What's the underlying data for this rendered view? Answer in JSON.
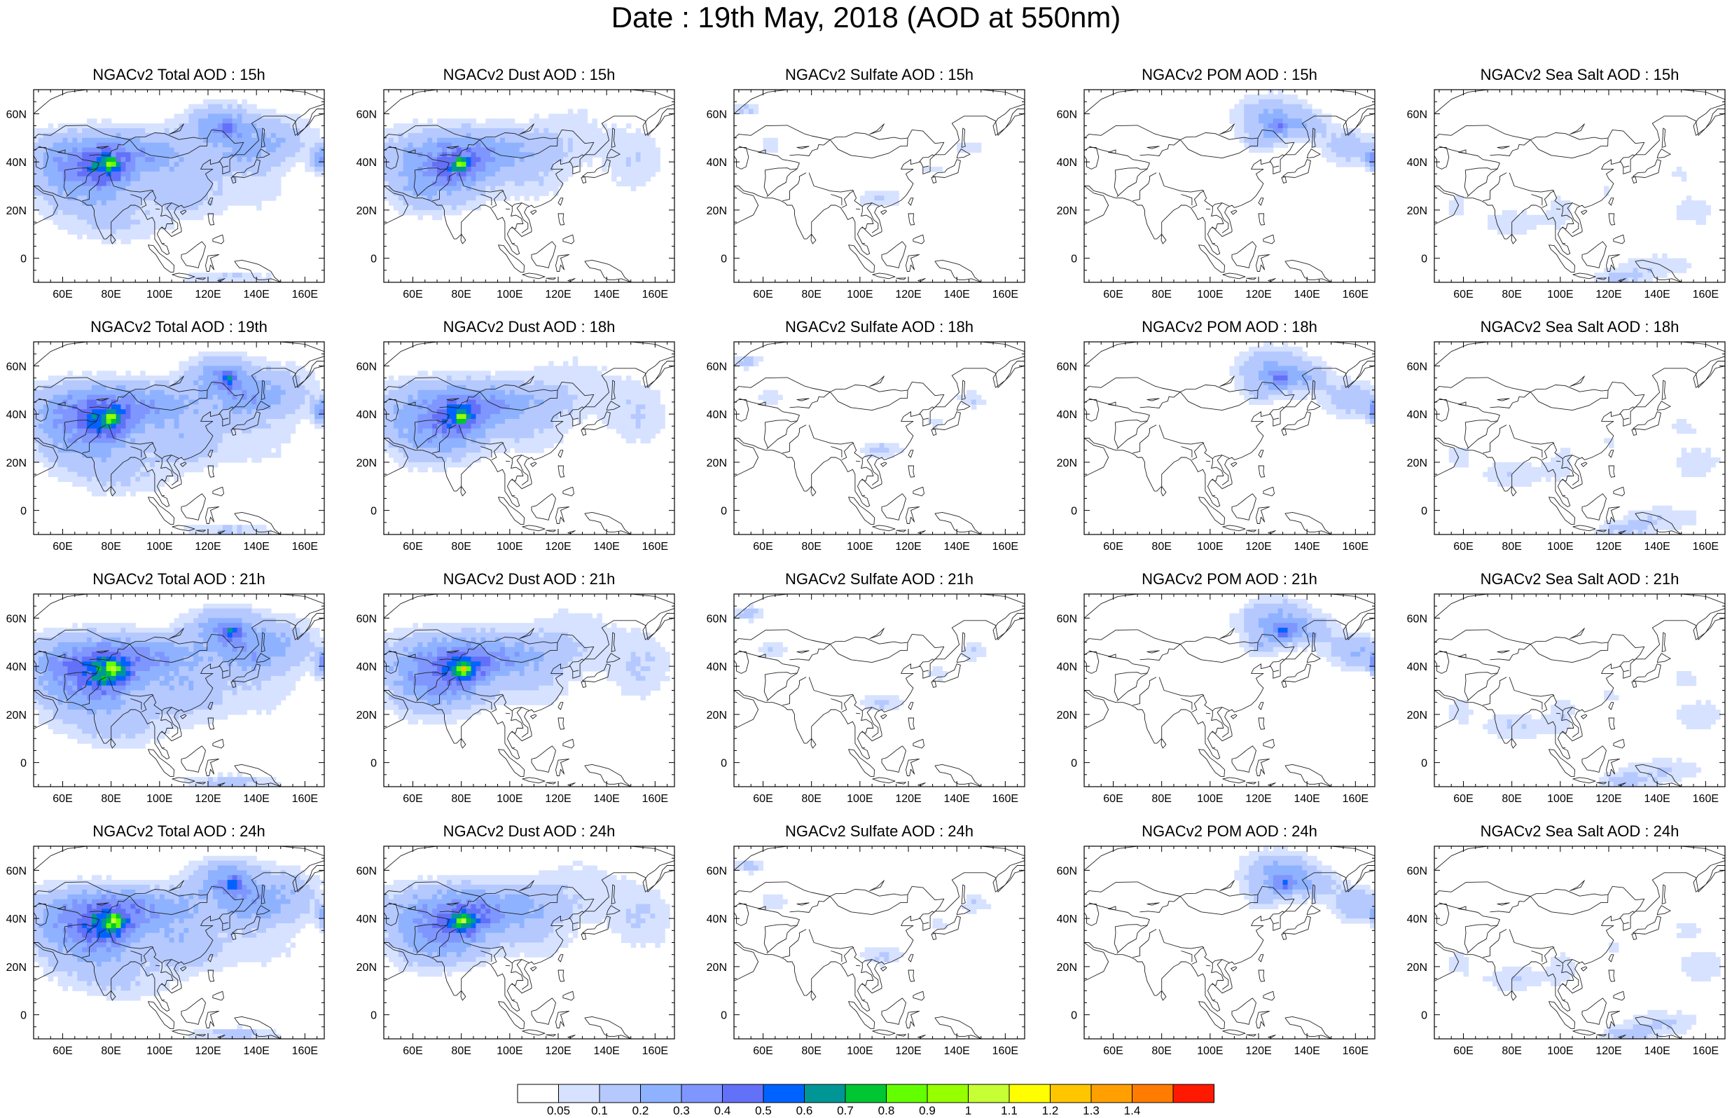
{
  "title": "Date : 19th May, 2018 (AOD at 550nm)",
  "chart_data": {
    "type": "heatmap",
    "title": "Date : 19th May, 2018 (AOD at 550nm)",
    "lon_range": [
      48,
      168
    ],
    "lat_range": [
      -10,
      70
    ],
    "lon_ticks": [
      "60E",
      "80E",
      "100E",
      "120E",
      "140E",
      "160E"
    ],
    "lon_tick_values": [
      60,
      80,
      100,
      120,
      140,
      160
    ],
    "lat_ticks": [
      "60N",
      "40N",
      "20N",
      "0"
    ],
    "lat_tick_values": [
      60,
      40,
      20,
      0
    ],
    "species": [
      "Total",
      "Dust",
      "Sulfate",
      "POM",
      "Sea Salt"
    ],
    "hours": [
      "15h",
      "18h/19h",
      "21h",
      "24h"
    ],
    "panels": [
      {
        "title": "NGACv2 Total AOD : 15h",
        "species": "Total",
        "hour": "15h"
      },
      {
        "title": "NGACv2 Dust AOD : 15h",
        "species": "Dust",
        "hour": "15h"
      },
      {
        "title": "NGACv2 Sulfate AOD : 15h",
        "species": "Sulfate",
        "hour": "15h"
      },
      {
        "title": "NGACv2 POM AOD : 15h",
        "species": "POM",
        "hour": "15h"
      },
      {
        "title": "NGACv2 Sea Salt AOD : 15h",
        "species": "Sea Salt",
        "hour": "15h"
      },
      {
        "title": "NGACv2 Total AOD : 19th",
        "species": "Total",
        "hour": "19th"
      },
      {
        "title": "NGACv2 Dust AOD : 18h",
        "species": "Dust",
        "hour": "18h"
      },
      {
        "title": "NGACv2 Sulfate AOD : 18h",
        "species": "Sulfate",
        "hour": "18h"
      },
      {
        "title": "NGACv2 POM AOD : 18h",
        "species": "POM",
        "hour": "18h"
      },
      {
        "title": "NGACv2 Sea Salt AOD : 18h",
        "species": "Sea Salt",
        "hour": "18h"
      },
      {
        "title": "NGACv2 Total AOD : 21h",
        "species": "Total",
        "hour": "21h"
      },
      {
        "title": "NGACv2 Dust AOD : 21h",
        "species": "Dust",
        "hour": "21h"
      },
      {
        "title": "NGACv2 Sulfate AOD : 21h",
        "species": "Sulfate",
        "hour": "21h"
      },
      {
        "title": "NGACv2 POM AOD : 21h",
        "species": "POM",
        "hour": "21h"
      },
      {
        "title": "NGACv2 Sea Salt AOD : 21h",
        "species": "Sea Salt",
        "hour": "21h"
      },
      {
        "title": "NGACv2 Total AOD : 24h",
        "species": "Total",
        "hour": "24h"
      },
      {
        "title": "NGACv2 Dust AOD : 24h",
        "species": "Dust",
        "hour": "24h"
      },
      {
        "title": "NGACv2 Sulfate AOD : 24h",
        "species": "Sulfate",
        "hour": "24h"
      },
      {
        "title": "NGACv2 POM AOD : 24h",
        "species": "POM",
        "hour": "24h"
      },
      {
        "title": "NGACv2 Sea Salt  AOD : 24h",
        "species": "Sea Salt",
        "hour": "24h"
      }
    ],
    "colorbar": {
      "labels": [
        "0.05",
        "0.1",
        "0.2",
        "0.3",
        "0.4",
        "0.5",
        "0.6",
        "0.7",
        "0.8",
        "0.9",
        "1",
        "1.1",
        "1.2",
        "1.3",
        "1.4"
      ],
      "colors": [
        "#ffffff",
        "#d6e2ff",
        "#b5c9ff",
        "#8eb2ff",
        "#7f96ff",
        "#6370f8",
        "#0063ff",
        "#009696",
        "#00c633",
        "#63ff00",
        "#96ff00",
        "#c6ff33",
        "#ffff00",
        "#ffc600",
        "#ffa000",
        "#ff7c00",
        "#ff1900"
      ]
    },
    "legend_position": "bottom-center",
    "grid": false
  }
}
